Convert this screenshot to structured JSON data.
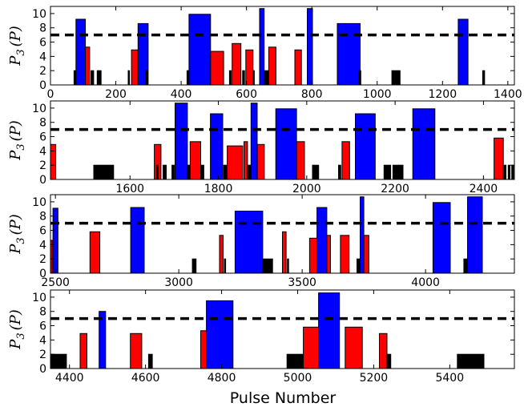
{
  "chart_data": {
    "xlabel": "Pulse Number",
    "ylabel_main": "P",
    "ylabel_sub": "3",
    "ylabel_arg": "(P)",
    "ylabel": "P_3(P)",
    "threshold": 7,
    "colors": {
      "high": "#0000ff",
      "mid": "#ff0000",
      "low": "#000000",
      "threshold": "#000000"
    },
    "panels": [
      {
        "type": "bar",
        "xlim": [
          0,
          1420
        ],
        "ylim": [
          0,
          11
        ],
        "xticks": [
          0,
          200,
          400,
          600,
          800,
          1000,
          1200,
          1400
        ],
        "yticks": [
          0,
          2,
          4,
          6,
          8,
          10
        ],
        "bars": [
          {
            "x0": 78,
            "x1": 107,
            "v": 9.2,
            "c": "high"
          },
          {
            "x0": 107,
            "x1": 120,
            "v": 5.3,
            "c": "mid"
          },
          {
            "x0": 72,
            "x1": 76,
            "v": 2,
            "c": "low"
          },
          {
            "x0": 124,
            "x1": 132,
            "v": 2,
            "c": "low"
          },
          {
            "x0": 143,
            "x1": 155,
            "v": 2,
            "c": "low"
          },
          {
            "x0": 248,
            "x1": 268,
            "v": 4.9,
            "c": "mid"
          },
          {
            "x0": 268,
            "x1": 299,
            "v": 8.6,
            "c": "high"
          },
          {
            "x0": 238,
            "x1": 242,
            "v": 2,
            "c": "low"
          },
          {
            "x0": 292,
            "x1": 297,
            "v": 2,
            "c": "low"
          },
          {
            "x0": 424,
            "x1": 490,
            "v": 9.9,
            "c": "high"
          },
          {
            "x0": 490,
            "x1": 530,
            "v": 4.7,
            "c": "mid"
          },
          {
            "x0": 418,
            "x1": 422,
            "v": 2,
            "c": "low"
          },
          {
            "x0": 548,
            "x1": 553,
            "v": 2,
            "c": "low"
          },
          {
            "x0": 556,
            "x1": 583,
            "v": 5.8,
            "c": "mid"
          },
          {
            "x0": 588,
            "x1": 594,
            "v": 2,
            "c": "low"
          },
          {
            "x0": 598,
            "x1": 620,
            "v": 4.9,
            "c": "mid"
          },
          {
            "x0": 620,
            "x1": 624,
            "v": 2,
            "c": "low"
          },
          {
            "x0": 640,
            "x1": 654,
            "v": 10.7,
            "c": "high"
          },
          {
            "x0": 654,
            "x1": 668,
            "v": 2,
            "c": "low"
          },
          {
            "x0": 668,
            "x1": 690,
            "v": 5.3,
            "c": "mid"
          },
          {
            "x0": 748,
            "x1": 768,
            "v": 4.9,
            "c": "mid"
          },
          {
            "x0": 786,
            "x1": 802,
            "v": 10.7,
            "c": "high"
          },
          {
            "x0": 878,
            "x1": 948,
            "v": 8.6,
            "c": "high"
          },
          {
            "x0": 945,
            "x1": 950,
            "v": 2,
            "c": "low"
          },
          {
            "x0": 1045,
            "x1": 1070,
            "v": 2,
            "c": "low"
          },
          {
            "x0": 1248,
            "x1": 1278,
            "v": 9.2,
            "c": "high"
          },
          {
            "x0": 1323,
            "x1": 1329,
            "v": 2,
            "c": "low"
          }
        ]
      },
      {
        "type": "bar",
        "xlim": [
          1420,
          2470
        ],
        "ylim": [
          0,
          11
        ],
        "xticks": [
          1600,
          1800,
          2000,
          2200,
          2400
        ],
        "yticks": [
          0,
          2,
          4,
          6,
          8,
          10
        ],
        "bars": [
          {
            "x0": 1420,
            "x1": 1432,
            "v": 4.9,
            "c": "mid"
          },
          {
            "x0": 1518,
            "x1": 1563,
            "v": 2,
            "c": "low"
          },
          {
            "x0": 1655,
            "x1": 1670,
            "v": 4.9,
            "c": "mid"
          },
          {
            "x0": 1660,
            "x1": 1664,
            "v": 2,
            "c": "low"
          },
          {
            "x0": 1675,
            "x1": 1682,
            "v": 2,
            "c": "low"
          },
          {
            "x0": 1695,
            "x1": 1700,
            "v": 2,
            "c": "low"
          },
          {
            "x0": 1702,
            "x1": 1730,
            "v": 10.7,
            "c": "high"
          },
          {
            "x0": 1730,
            "x1": 1736,
            "v": 2,
            "c": "low"
          },
          {
            "x0": 1736,
            "x1": 1760,
            "v": 5.3,
            "c": "mid"
          },
          {
            "x0": 1760,
            "x1": 1767,
            "v": 2,
            "c": "low"
          },
          {
            "x0": 1782,
            "x1": 1810,
            "v": 9.2,
            "c": "high"
          },
          {
            "x0": 1812,
            "x1": 1818,
            "v": 2,
            "c": "low"
          },
          {
            "x0": 1820,
            "x1": 1855,
            "v": 4.7,
            "c": "mid"
          },
          {
            "x0": 1858,
            "x1": 1866,
            "v": 5.3,
            "c": "mid"
          },
          {
            "x0": 1868,
            "x1": 1874,
            "v": 2,
            "c": "low"
          },
          {
            "x0": 1874,
            "x1": 1888,
            "v": 10.7,
            "c": "high"
          },
          {
            "x0": 1888,
            "x1": 1904,
            "v": 4.9,
            "c": "mid"
          },
          {
            "x0": 1930,
            "x1": 1977,
            "v": 9.9,
            "c": "high"
          },
          {
            "x0": 1977,
            "x1": 1995,
            "v": 5.3,
            "c": "mid"
          },
          {
            "x0": 2013,
            "x1": 2027,
            "v": 2,
            "c": "low"
          },
          {
            "x0": 2072,
            "x1": 2077,
            "v": 2,
            "c": "low"
          },
          {
            "x0": 2080,
            "x1": 2097,
            "v": 5.3,
            "c": "mid"
          },
          {
            "x0": 2110,
            "x1": 2155,
            "v": 9.2,
            "c": "high"
          },
          {
            "x0": 2175,
            "x1": 2190,
            "v": 2,
            "c": "low"
          },
          {
            "x0": 2195,
            "x1": 2208,
            "v": 2,
            "c": "low"
          },
          {
            "x0": 2208,
            "x1": 2218,
            "v": 2,
            "c": "low"
          },
          {
            "x0": 2240,
            "x1": 2290,
            "v": 9.9,
            "c": "high"
          },
          {
            "x0": 2424,
            "x1": 2445,
            "v": 5.8,
            "c": "mid"
          },
          {
            "x0": 2447,
            "x1": 2451,
            "v": 2,
            "c": "low"
          },
          {
            "x0": 2456,
            "x1": 2460,
            "v": 2,
            "c": "low"
          },
          {
            "x0": 2464,
            "x1": 2468,
            "v": 2,
            "c": "low"
          }
        ]
      },
      {
        "type": "bar",
        "xlim": [
          2480,
          4360
        ],
        "ylim": [
          0,
          11
        ],
        "xticks": [
          2500,
          3000,
          3500,
          4000
        ],
        "yticks": [
          0,
          2,
          4,
          6,
          8,
          10
        ],
        "bars": [
          {
            "x0": 2480,
            "x1": 2487,
            "v": 4.6,
            "c": "mid"
          },
          {
            "x0": 2490,
            "x1": 2510,
            "v": 9.1,
            "c": "high"
          },
          {
            "x0": 2640,
            "x1": 2680,
            "v": 5.8,
            "c": "mid"
          },
          {
            "x0": 2805,
            "x1": 2860,
            "v": 9.2,
            "c": "high"
          },
          {
            "x0": 3055,
            "x1": 3070,
            "v": 2,
            "c": "low"
          },
          {
            "x0": 3165,
            "x1": 3180,
            "v": 5.3,
            "c": "mid"
          },
          {
            "x0": 3185,
            "x1": 3190,
            "v": 2,
            "c": "low"
          },
          {
            "x0": 3228,
            "x1": 3340,
            "v": 8.7,
            "c": "high"
          },
          {
            "x0": 3342,
            "x1": 3380,
            "v": 2,
            "c": "low"
          },
          {
            "x0": 3420,
            "x1": 3435,
            "v": 5.8,
            "c": "mid"
          },
          {
            "x0": 3440,
            "x1": 3445,
            "v": 2,
            "c": "low"
          },
          {
            "x0": 3530,
            "x1": 3560,
            "v": 4.9,
            "c": "mid"
          },
          {
            "x0": 3560,
            "x1": 3600,
            "v": 9.2,
            "c": "high"
          },
          {
            "x0": 3600,
            "x1": 3615,
            "v": 5.3,
            "c": "mid"
          },
          {
            "x0": 3655,
            "x1": 3690,
            "v": 5.3,
            "c": "mid"
          },
          {
            "x0": 3722,
            "x1": 3735,
            "v": 2,
            "c": "low"
          },
          {
            "x0": 3735,
            "x1": 3750,
            "v": 10.7,
            "c": "high"
          },
          {
            "x0": 3750,
            "x1": 3770,
            "v": 5.3,
            "c": "mid"
          },
          {
            "x0": 4030,
            "x1": 4100,
            "v": 9.9,
            "c": "high"
          },
          {
            "x0": 4155,
            "x1": 4170,
            "v": 2,
            "c": "low"
          },
          {
            "x0": 4170,
            "x1": 4230,
            "v": 10.7,
            "c": "high"
          }
        ]
      },
      {
        "type": "bar",
        "xlim": [
          4350,
          5570
        ],
        "ylim": [
          0,
          11
        ],
        "xticks": [
          4400,
          4600,
          4800,
          5000,
          5200,
          5400
        ],
        "yticks": [
          0,
          2,
          4,
          6,
          8,
          10
        ],
        "bars": [
          {
            "x0": 4352,
            "x1": 4392,
            "v": 2,
            "c": "low"
          },
          {
            "x0": 4428,
            "x1": 4446,
            "v": 4.9,
            "c": "mid"
          },
          {
            "x0": 4478,
            "x1": 4495,
            "v": 8,
            "c": "high"
          },
          {
            "x0": 4560,
            "x1": 4590,
            "v": 4.9,
            "c": "mid"
          },
          {
            "x0": 4608,
            "x1": 4618,
            "v": 2,
            "c": "low"
          },
          {
            "x0": 4745,
            "x1": 4760,
            "v": 5.3,
            "c": "mid"
          },
          {
            "x0": 4760,
            "x1": 4830,
            "v": 9.5,
            "c": "high"
          },
          {
            "x0": 4972,
            "x1": 5015,
            "v": 2,
            "c": "low"
          },
          {
            "x0": 5015,
            "x1": 5055,
            "v": 5.8,
            "c": "mid"
          },
          {
            "x0": 5055,
            "x1": 5110,
            "v": 10.6,
            "c": "high"
          },
          {
            "x0": 5125,
            "x1": 5170,
            "v": 5.8,
            "c": "mid"
          },
          {
            "x0": 5215,
            "x1": 5235,
            "v": 4.9,
            "c": "mid"
          },
          {
            "x0": 5235,
            "x1": 5245,
            "v": 2,
            "c": "low"
          },
          {
            "x0": 5420,
            "x1": 5490,
            "v": 2,
            "c": "low"
          }
        ]
      }
    ]
  }
}
